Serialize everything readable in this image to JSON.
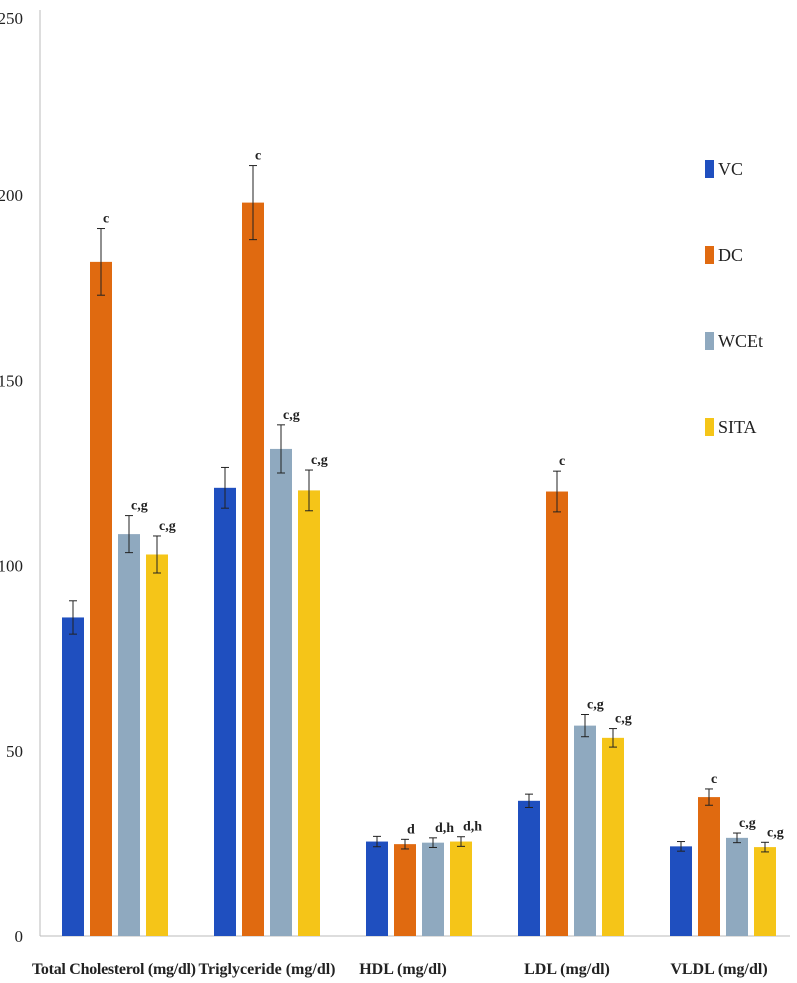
{
  "chart_data": {
    "type": "bar",
    "title": "",
    "xlabel": "",
    "ylabel": "",
    "ylim": [
      0,
      250
    ],
    "yticks": [
      0,
      50,
      100,
      150,
      200,
      250
    ],
    "grid": false,
    "legend_position": "right",
    "categories": [
      "Total Cholesterol (mg/dl)",
      "Triglyceride (mg/dl)",
      "HDL (mg/dl)",
      "LDL (mg/dl)",
      "VLDL (mg/dl)"
    ],
    "series": [
      {
        "name": "VC",
        "color": "#1f4fbf",
        "values": [
          86,
          121,
          25.5,
          36.5,
          24.2
        ],
        "errors": [
          4.5,
          5.5,
          1.4,
          1.8,
          1.3
        ],
        "labels": [
          "",
          "",
          "",
          "",
          ""
        ]
      },
      {
        "name": "DC",
        "color": "#e06a10",
        "values": [
          182,
          198,
          24.8,
          120,
          37.5
        ],
        "errors": [
          9,
          10,
          1.3,
          5.5,
          2.2
        ],
        "labels": [
          "c",
          "c",
          "d",
          "c",
          "c"
        ]
      },
      {
        "name": "WCEt",
        "color": "#8fa9bf",
        "values": [
          108.5,
          131.5,
          25.2,
          56.8,
          26.5
        ],
        "errors": [
          5,
          6.5,
          1.3,
          3,
          1.3
        ],
        "labels": [
          "c,g",
          "c,g",
          "d,h",
          "c,g",
          "c,g"
        ]
      },
      {
        "name": "SITA",
        "color": "#f5c518",
        "values": [
          103,
          120.3,
          25.5,
          53.5,
          24
        ],
        "errors": [
          5,
          5.5,
          1.3,
          2.5,
          1.3
        ],
        "labels": [
          "c,g",
          "c,g",
          "d,h",
          "c,g",
          "c,g"
        ]
      }
    ]
  }
}
